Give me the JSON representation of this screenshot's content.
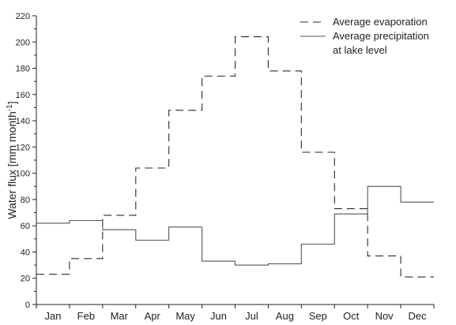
{
  "chart_data": {
    "type": "line",
    "step": true,
    "categories": [
      "Jan",
      "Feb",
      "Mar",
      "Apr",
      "May",
      "Jun",
      "Jul",
      "Aug",
      "Sep",
      "Oct",
      "Nov",
      "Dec"
    ],
    "series": [
      {
        "name": "Average evaporation",
        "line_style": "dashed",
        "values": [
          23,
          35,
          68,
          104,
          148,
          174,
          204,
          178,
          116,
          73,
          37,
          21
        ]
      },
      {
        "name": "Average precipitation at lake level",
        "name_lines": [
          "Average precipitation",
          "at lake level"
        ],
        "line_style": "solid",
        "values": [
          62,
          64,
          57,
          49,
          59,
          33,
          30,
          31,
          46,
          69,
          90,
          78
        ]
      }
    ],
    "title": "",
    "xlabel": "",
    "ylabel": "Water flux [mm month",
    "ylabel_superscript": "-1",
    "ylabel_suffix": "]",
    "ylim": [
      0,
      220
    ],
    "yticks": [
      0,
      20,
      40,
      60,
      80,
      100,
      120,
      140,
      160,
      180,
      200,
      220
    ],
    "grid": false,
    "legend_position": "top-right",
    "colors": {
      "evaporation": "#2a2a2a",
      "precipitation": "#555555",
      "axis": "#222222"
    }
  }
}
